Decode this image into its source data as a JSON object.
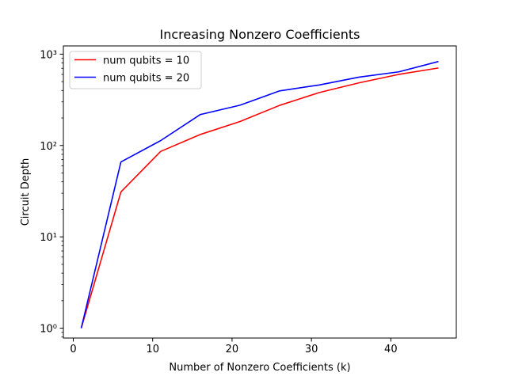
{
  "chart_data": {
    "type": "line",
    "title": "Increasing Nonzero Coefficients",
    "xlabel": "Number of Nonzero Coefficients (k)",
    "ylabel": "Circuit Depth",
    "yscale": "log",
    "xlim": [
      -1.25,
      48.25
    ],
    "ylim": [
      0.78,
      1230
    ],
    "xticks": [
      0,
      10,
      20,
      30,
      40
    ],
    "xtick_labels": [
      "0",
      "10",
      "20",
      "30",
      "40"
    ],
    "yticks": [
      1,
      10,
      100,
      1000
    ],
    "ytick_labels": [
      "10⁰",
      "10¹",
      "10²",
      "10³"
    ],
    "grid": false,
    "legend_position": "top-left",
    "x": [
      1,
      6,
      11,
      16,
      21,
      26,
      31,
      36,
      41,
      46
    ],
    "series": [
      {
        "name": "num qubits = 10",
        "color": "#ff0000",
        "values": [
          1,
          31,
          86,
          132,
          183,
          275,
          380,
          485,
          600,
          705
        ]
      },
      {
        "name": "num qubits = 20",
        "color": "#0000ff",
        "values": [
          1,
          66,
          113,
          218,
          276,
          396,
          460,
          560,
          640,
          830
        ]
      }
    ]
  }
}
